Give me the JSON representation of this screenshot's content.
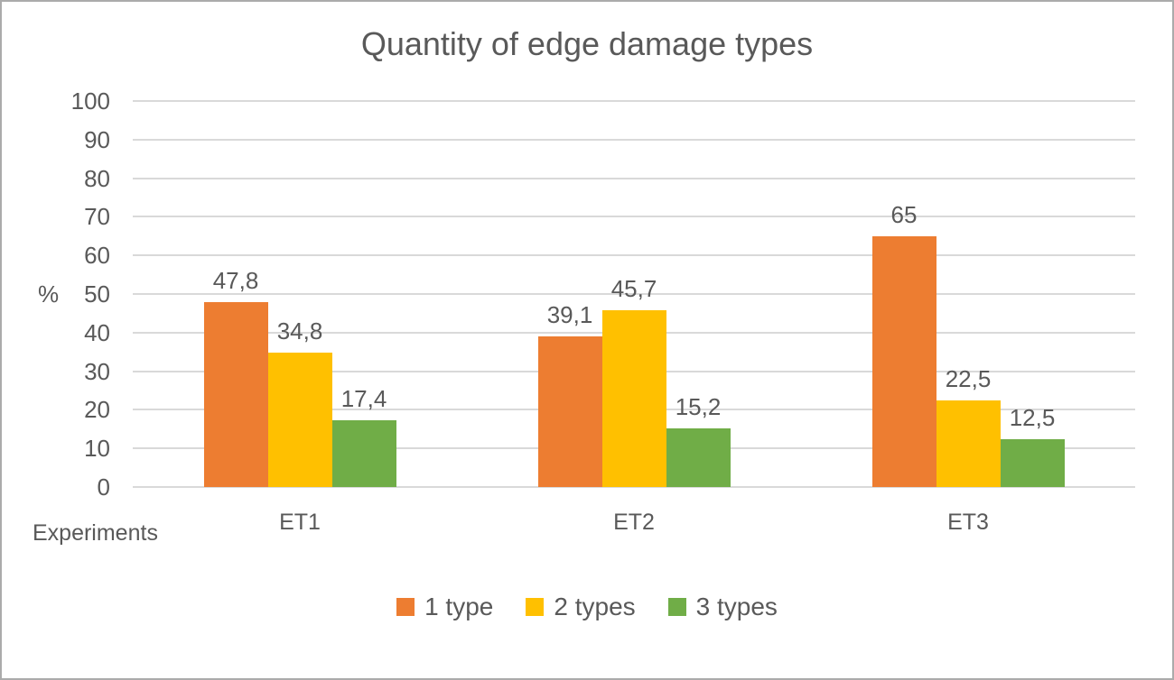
{
  "chart_data": {
    "type": "bar",
    "title": "Quantity of edge damage types",
    "xlabel": "Experiments",
    "ylabel": "%",
    "categories": [
      "ET1",
      "ET2",
      "ET3"
    ],
    "series": [
      {
        "name": "1 type",
        "color": "#ED7D31",
        "values": [
          47.8,
          39.1,
          65
        ],
        "labels": [
          "47,8",
          "39,1",
          "65"
        ]
      },
      {
        "name": "2 types",
        "color": "#FFC000",
        "values": [
          34.8,
          45.7,
          22.5
        ],
        "labels": [
          "34,8",
          "45,7",
          "22,5"
        ]
      },
      {
        "name": "3 types",
        "color": "#70AD47",
        "values": [
          17.4,
          15.2,
          12.5
        ],
        "labels": [
          "17,4",
          "15,2",
          "12,5"
        ]
      }
    ],
    "ylim": [
      0,
      100
    ],
    "yticks": [
      0,
      10,
      20,
      30,
      40,
      50,
      60,
      70,
      80,
      90,
      100
    ],
    "grid": true,
    "legend_position": "bottom"
  },
  "colors": {
    "text": "#595959",
    "gridline": "#D9D9D9",
    "frame_border": "#ABABAB",
    "background": "#FFFFFF"
  }
}
